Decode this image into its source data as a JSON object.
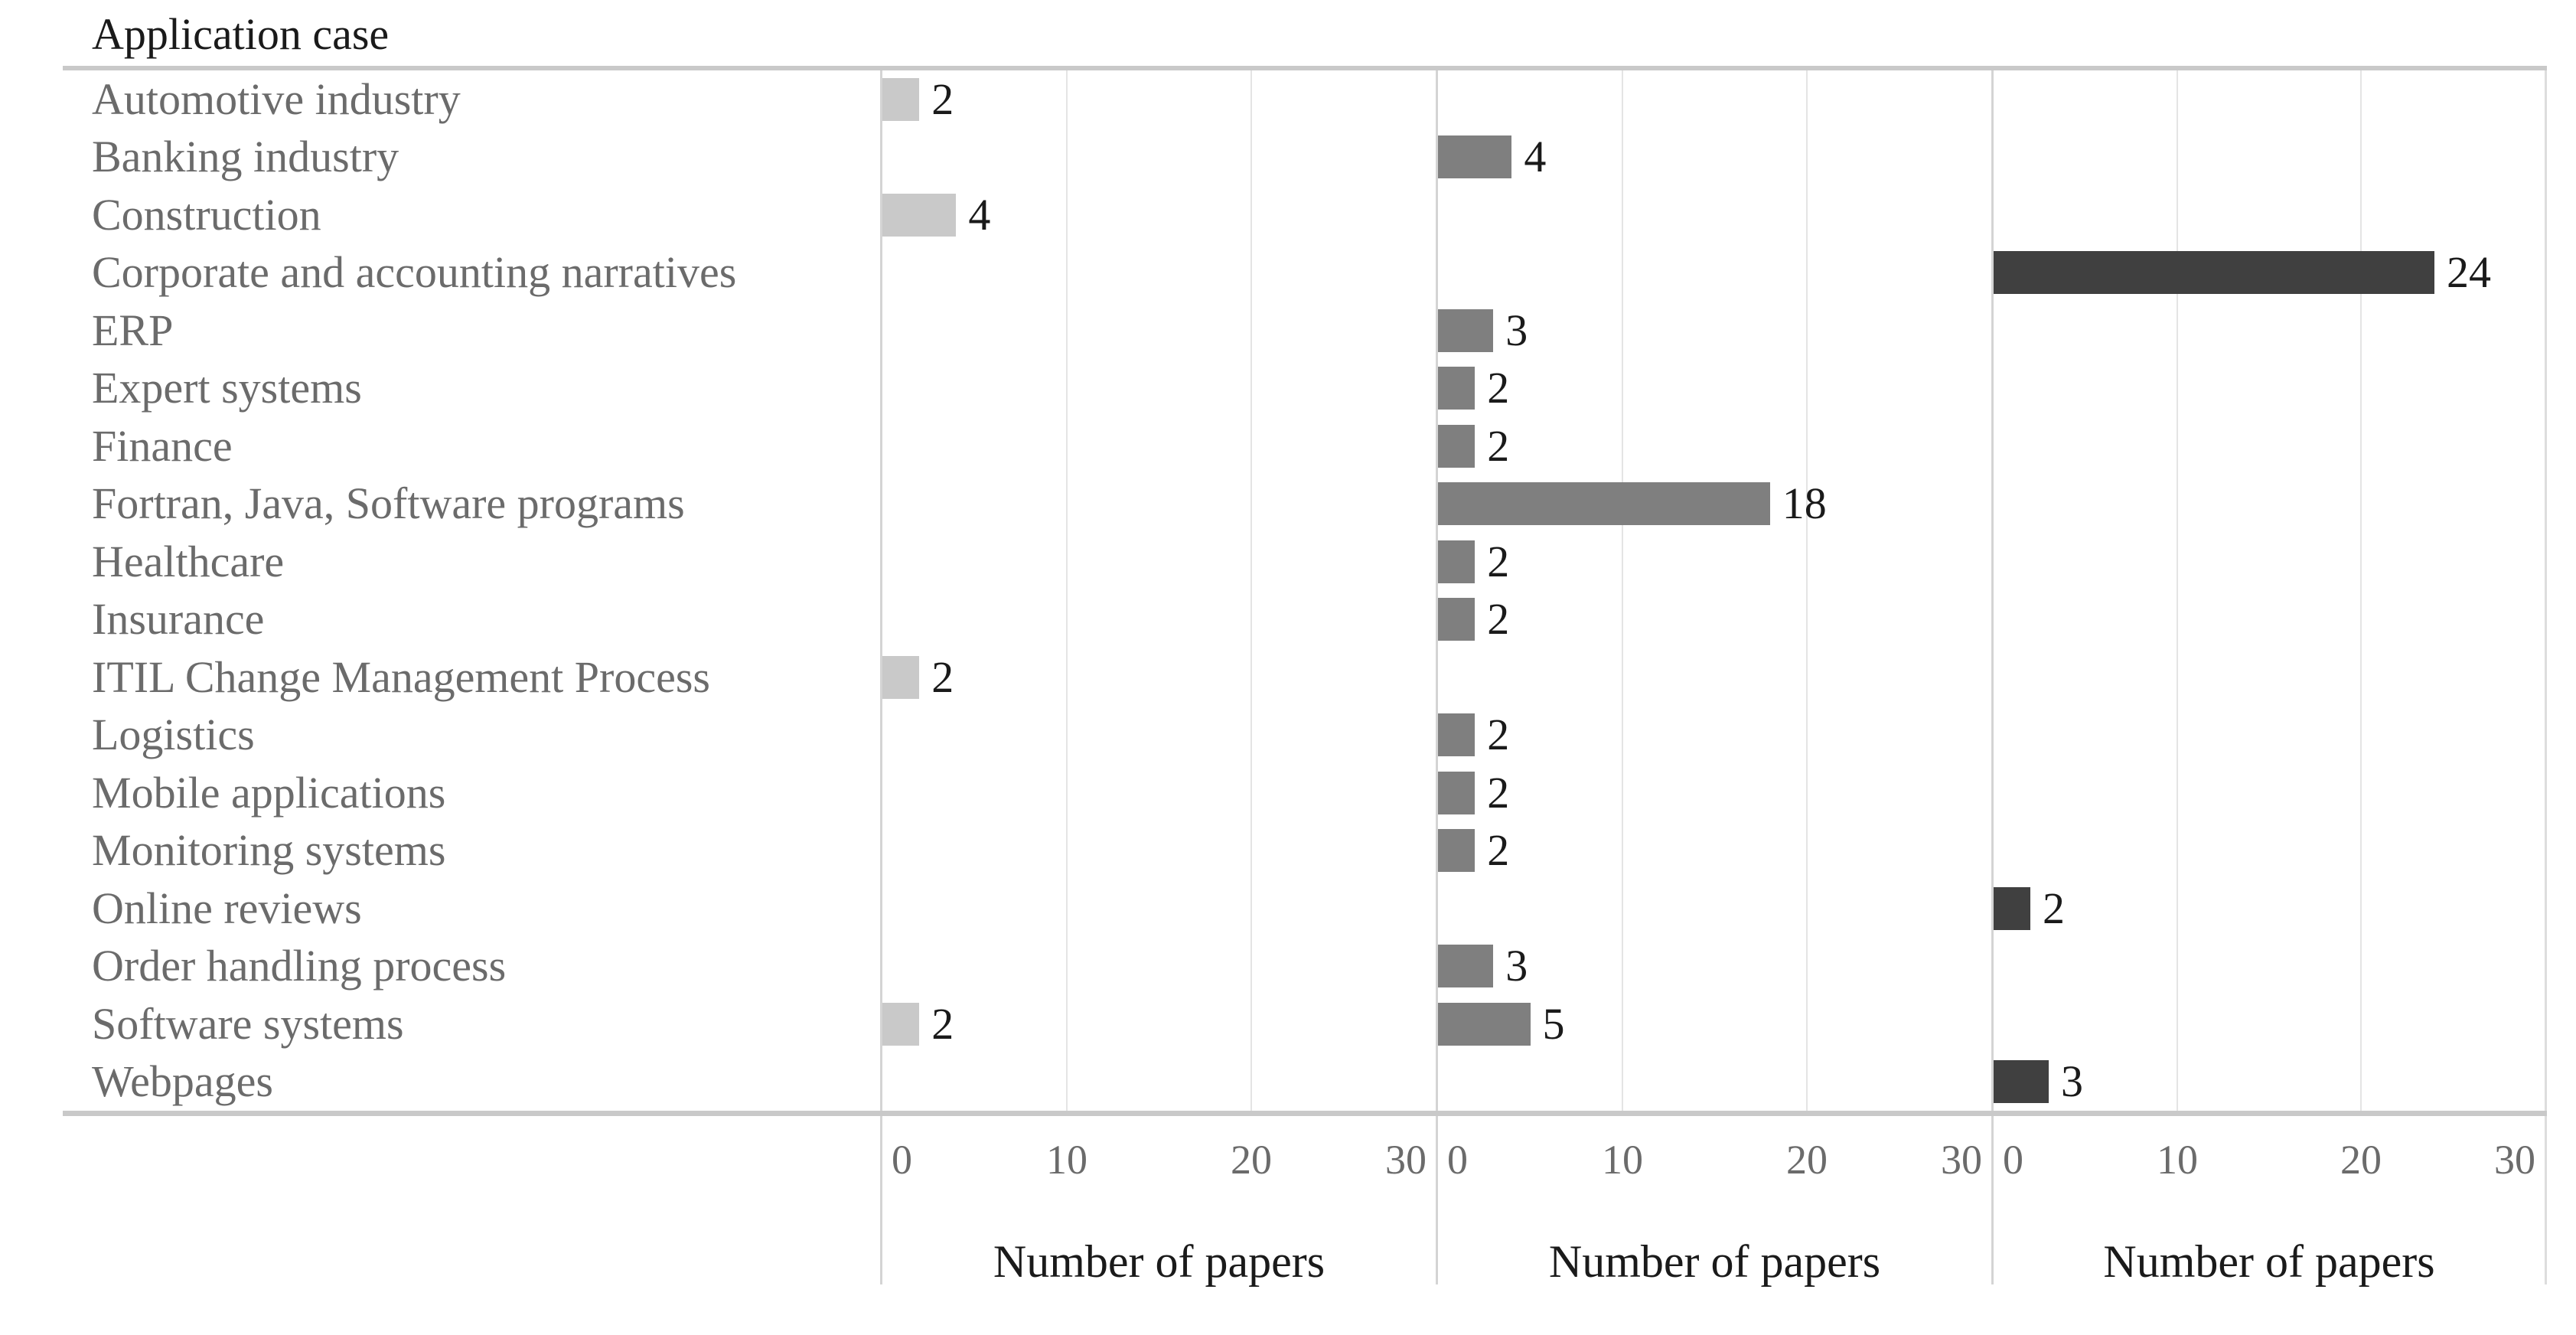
{
  "title": "Application case",
  "axis": {
    "ticks": [
      "0",
      "10",
      "20",
      "30"
    ],
    "max": 30,
    "xlabel": "Number of papers"
  },
  "panels": [
    {
      "name": "light-gray",
      "color": "#c9c9c9"
    },
    {
      "name": "medium-gray",
      "color": "#7f7f7f"
    },
    {
      "name": "dark-gray",
      "color": "#404040"
    }
  ],
  "rows": [
    {
      "label": "Automotive industry",
      "values": [
        2,
        null,
        null
      ]
    },
    {
      "label": "Banking industry",
      "values": [
        null,
        4,
        null
      ]
    },
    {
      "label": "Construction",
      "values": [
        4,
        null,
        null
      ]
    },
    {
      "label": "Corporate and accounting narratives",
      "values": [
        null,
        null,
        24
      ]
    },
    {
      "label": "ERP",
      "values": [
        null,
        3,
        null
      ]
    },
    {
      "label": "Expert systems",
      "values": [
        null,
        2,
        null
      ]
    },
    {
      "label": "Finance",
      "values": [
        null,
        2,
        null
      ]
    },
    {
      "label": "Fortran, Java, Software programs",
      "values": [
        null,
        18,
        null
      ]
    },
    {
      "label": "Healthcare",
      "values": [
        null,
        2,
        null
      ]
    },
    {
      "label": "Insurance",
      "values": [
        null,
        2,
        null
      ]
    },
    {
      "label": "ITIL Change Management Process",
      "values": [
        2,
        null,
        null
      ]
    },
    {
      "label": "Logistics",
      "values": [
        null,
        2,
        null
      ]
    },
    {
      "label": "Mobile applications",
      "values": [
        null,
        2,
        null
      ]
    },
    {
      "label": "Monitoring systems",
      "values": [
        null,
        2,
        null
      ]
    },
    {
      "label": "Online reviews",
      "values": [
        null,
        null,
        2
      ]
    },
    {
      "label": "Order handling process",
      "values": [
        null,
        3,
        null
      ]
    },
    {
      "label": "Software systems",
      "values": [
        2,
        5,
        null
      ]
    },
    {
      "label": "Webpages",
      "values": [
        null,
        null,
        3
      ]
    }
  ],
  "chart_data": {
    "type": "bar",
    "orientation": "horizontal",
    "title": "Application case",
    "xlabel": "Number of papers",
    "xlim": [
      0,
      30
    ],
    "xticks": [
      0,
      10,
      20,
      30
    ],
    "grid": "vertical",
    "legend": "none",
    "categories": [
      "Automotive industry",
      "Banking industry",
      "Construction",
      "Corporate and accounting narratives",
      "ERP",
      "Expert systems",
      "Finance",
      "Fortran, Java, Software programs",
      "Healthcare",
      "Insurance",
      "ITIL Change Management Process",
      "Logistics",
      "Mobile applications",
      "Monitoring systems",
      "Online reviews",
      "Order handling process",
      "Software systems",
      "Webpages"
    ],
    "series": [
      {
        "name": "panel-1-light-gray",
        "color": "#c9c9c9",
        "values": [
          2,
          null,
          4,
          null,
          null,
          null,
          null,
          null,
          null,
          null,
          2,
          null,
          null,
          null,
          null,
          null,
          2,
          null
        ]
      },
      {
        "name": "panel-2-medium-gray",
        "color": "#7f7f7f",
        "values": [
          null,
          4,
          null,
          null,
          3,
          2,
          2,
          18,
          2,
          2,
          null,
          2,
          2,
          2,
          null,
          3,
          5,
          null
        ]
      },
      {
        "name": "panel-3-dark-gray",
        "color": "#404040",
        "values": [
          null,
          null,
          null,
          24,
          null,
          null,
          null,
          null,
          null,
          null,
          null,
          null,
          null,
          null,
          2,
          null,
          null,
          3
        ]
      }
    ]
  }
}
